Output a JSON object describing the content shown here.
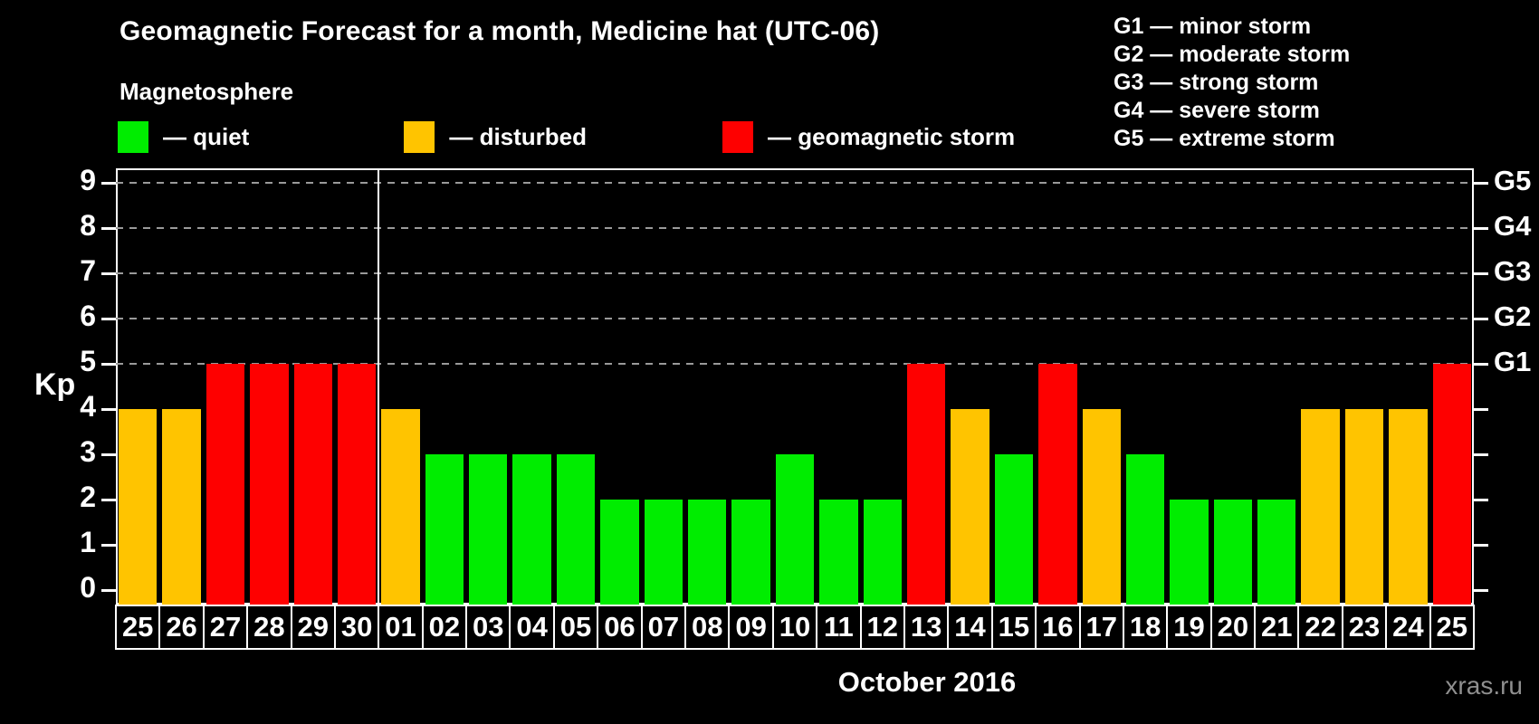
{
  "header": {
    "title": "Geomagnetic Forecast for a month, Medicine hat (UTC-06)",
    "subtitle": "Magnetosphere"
  },
  "legend": {
    "items": [
      {
        "name": "quiet",
        "label": "— quiet",
        "color": "#00ed00"
      },
      {
        "name": "disturbed",
        "label": "— disturbed",
        "color": "#ffc400"
      },
      {
        "name": "storm",
        "label": "— geomagnetic storm",
        "color": "#fe0000"
      }
    ]
  },
  "storm_scale": [
    "G1 — minor storm",
    "G2 — moderate storm",
    "G3 — strong storm",
    "G4 — severe storm",
    "G5 — extreme storm"
  ],
  "watermark": "xras.ru",
  "chart_data": {
    "type": "bar",
    "title": "Geomagnetic Forecast for a month, Medicine hat (UTC-06)",
    "ylabel": "Kp",
    "xlabel": "October 2016",
    "ylim": [
      0,
      9.4
    ],
    "yticks": [
      0,
      1,
      2,
      3,
      4,
      5,
      6,
      7,
      8,
      9
    ],
    "grid_levels_kp": [
      5,
      6,
      7,
      8,
      9
    ],
    "right_axis": [
      {
        "kp": 5,
        "label": "G1"
      },
      {
        "kp": 6,
        "label": "G2"
      },
      {
        "kp": 7,
        "label": "G3"
      },
      {
        "kp": 8,
        "label": "G4"
      },
      {
        "kp": 9,
        "label": "G5"
      }
    ],
    "month_separator_after_bar": 6,
    "status_colors": {
      "quiet": "#00ed00",
      "disturbed": "#ffc400",
      "storm": "#fe0000"
    },
    "bars": [
      {
        "day": "25",
        "kp": 4,
        "status": "disturbed"
      },
      {
        "day": "26",
        "kp": 4,
        "status": "disturbed"
      },
      {
        "day": "27",
        "kp": 5,
        "status": "storm"
      },
      {
        "day": "28",
        "kp": 5,
        "status": "storm"
      },
      {
        "day": "29",
        "kp": 5,
        "status": "storm"
      },
      {
        "day": "30",
        "kp": 5,
        "status": "storm"
      },
      {
        "day": "01",
        "kp": 4,
        "status": "disturbed"
      },
      {
        "day": "02",
        "kp": 3,
        "status": "quiet"
      },
      {
        "day": "03",
        "kp": 3,
        "status": "quiet"
      },
      {
        "day": "04",
        "kp": 3,
        "status": "quiet"
      },
      {
        "day": "05",
        "kp": 3,
        "status": "quiet"
      },
      {
        "day": "06",
        "kp": 2,
        "status": "quiet"
      },
      {
        "day": "07",
        "kp": 2,
        "status": "quiet"
      },
      {
        "day": "08",
        "kp": 2,
        "status": "quiet"
      },
      {
        "day": "09",
        "kp": 2,
        "status": "quiet"
      },
      {
        "day": "10",
        "kp": 3,
        "status": "quiet"
      },
      {
        "day": "11",
        "kp": 2,
        "status": "quiet"
      },
      {
        "day": "12",
        "kp": 2,
        "status": "quiet"
      },
      {
        "day": "13",
        "kp": 5,
        "status": "storm"
      },
      {
        "day": "14",
        "kp": 4,
        "status": "disturbed"
      },
      {
        "day": "15",
        "kp": 3,
        "status": "quiet"
      },
      {
        "day": "16",
        "kp": 5,
        "status": "storm"
      },
      {
        "day": "17",
        "kp": 4,
        "status": "disturbed"
      },
      {
        "day": "18",
        "kp": 3,
        "status": "quiet"
      },
      {
        "day": "19",
        "kp": 2,
        "status": "quiet"
      },
      {
        "day": "20",
        "kp": 2,
        "status": "quiet"
      },
      {
        "day": "21",
        "kp": 2,
        "status": "quiet"
      },
      {
        "day": "22",
        "kp": 4,
        "status": "disturbed"
      },
      {
        "day": "23",
        "kp": 4,
        "status": "disturbed"
      },
      {
        "day": "24",
        "kp": 4,
        "status": "disturbed"
      },
      {
        "day": "25",
        "kp": 5,
        "status": "storm"
      }
    ]
  }
}
